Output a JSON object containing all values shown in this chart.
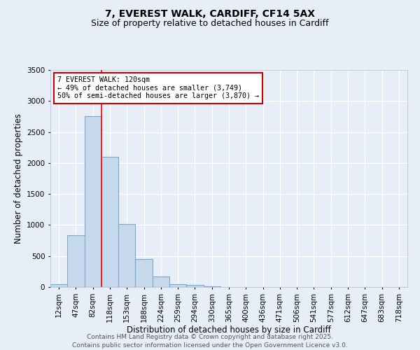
{
  "title": "7, EVEREST WALK, CARDIFF, CF14 5AX",
  "subtitle": "Size of property relative to detached houses in Cardiff",
  "xlabel": "Distribution of detached houses by size in Cardiff",
  "ylabel": "Number of detached properties",
  "categories": [
    "12sqm",
    "47sqm",
    "82sqm",
    "118sqm",
    "153sqm",
    "188sqm",
    "224sqm",
    "259sqm",
    "294sqm",
    "330sqm",
    "365sqm",
    "400sqm",
    "436sqm",
    "471sqm",
    "506sqm",
    "541sqm",
    "577sqm",
    "612sqm",
    "647sqm",
    "683sqm",
    "718sqm"
  ],
  "values": [
    50,
    830,
    2750,
    2100,
    1020,
    450,
    170,
    50,
    30,
    10,
    5,
    2,
    0,
    0,
    0,
    0,
    0,
    0,
    0,
    0,
    0
  ],
  "bar_color": "#c6d8ec",
  "bar_edge_color": "#7aaac8",
  "bar_linewidth": 0.8,
  "annotation_line1": "7 EVEREST WALK: 120sqm",
  "annotation_line2": "← 49% of detached houses are smaller (3,749)",
  "annotation_line3": "50% of semi-detached houses are larger (3,870) →",
  "annotation_box_color": "#ffffff",
  "annotation_box_edge": "#cc0000",
  "ylim": [
    0,
    3500
  ],
  "yticks": [
    0,
    500,
    1000,
    1500,
    2000,
    2500,
    3000,
    3500
  ],
  "bg_color": "#e8eef8",
  "plot_bg_color": "#e8eef8",
  "grid_color": "#ffffff",
  "footer_line1": "Contains HM Land Registry data © Crown copyright and database right 2025.",
  "footer_line2": "Contains public sector information licensed under the Open Government Licence v3.0.",
  "title_fontsize": 10,
  "subtitle_fontsize": 9,
  "axis_label_fontsize": 8.5,
  "tick_fontsize": 7.5,
  "footer_fontsize": 6.5
}
